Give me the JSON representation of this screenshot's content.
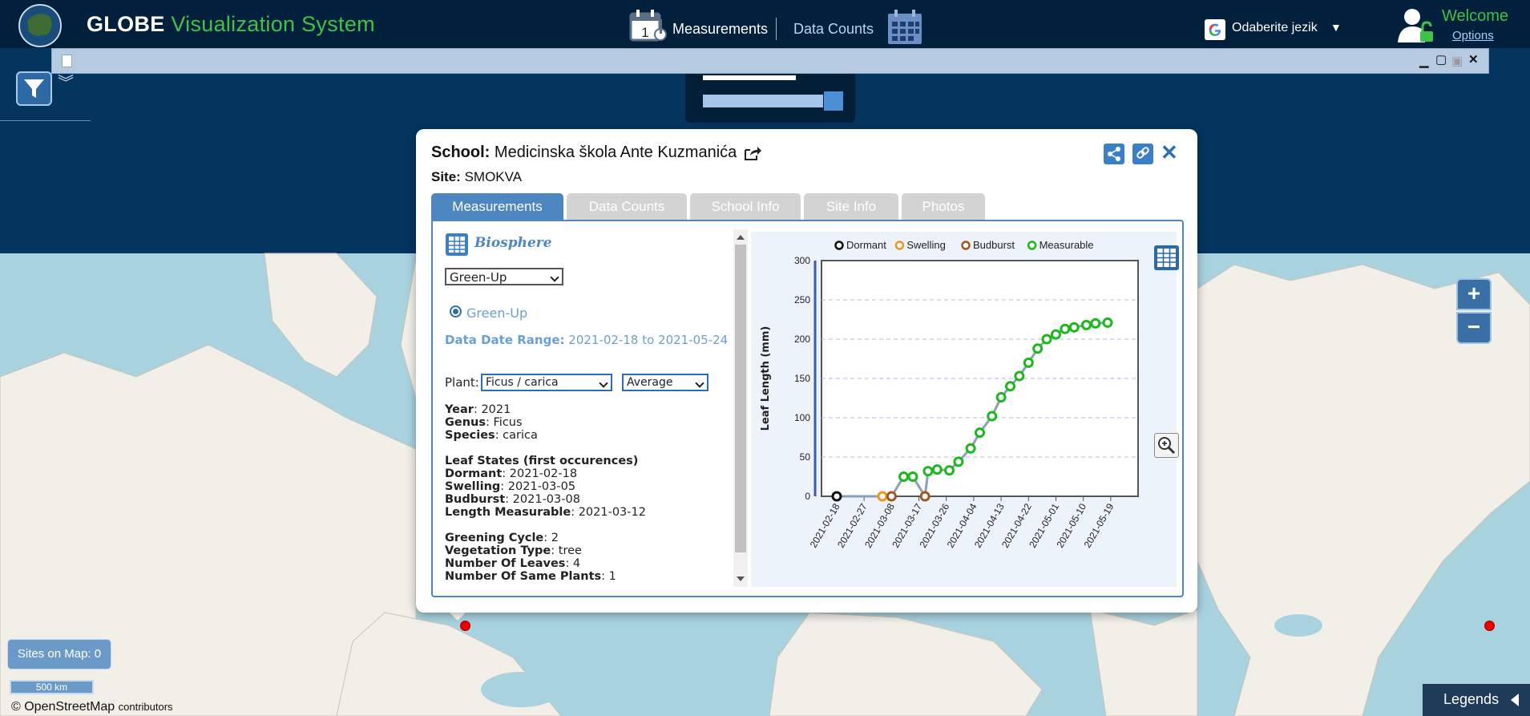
{
  "header": {
    "app_title_bold": "GLOBE",
    "app_title_rest": "Visualization System",
    "nav_measurements": "Measurements",
    "nav_data_counts": "Data Counts",
    "nav_calendar_day": "1",
    "language": "Odaberite jezik",
    "welcome": "Welcome",
    "options": "Options"
  },
  "map": {
    "sites_on_map": "Sites on Map: 0",
    "scale": "500 km",
    "attribution": "© OpenStreetMap",
    "attribution_suffix": "contributors",
    "legends": "Legends",
    "zoom_in": "+",
    "zoom_out": "−"
  },
  "popup": {
    "school_label": "School:",
    "school_name": "Medicinska škola Ante Kuzmanića",
    "site_label": "Site:",
    "site_name": "SMOKVA",
    "tabs": [
      {
        "label": "Measurements",
        "active": true
      },
      {
        "label": "Data Counts",
        "active": false
      },
      {
        "label": "School Info",
        "active": false
      },
      {
        "label": "Site Info",
        "active": false
      },
      {
        "label": "Photos",
        "active": false
      }
    ],
    "protocol_title": "Biosphere",
    "protocol_select": "Green-Up",
    "radio_option": "Green-Up",
    "date_range_label": "Data Date Range:",
    "date_range_value": "2021-02-18 to 2021-05-24",
    "plant_label": "Plant:",
    "plant_select": "Ficus / carica",
    "aggregate_select": "Average",
    "details": [
      {
        "key": "Year",
        "value": ": 2021"
      },
      {
        "key": "Genus",
        "value": ": Ficus"
      },
      {
        "key": "Species",
        "value": ": carica"
      }
    ],
    "leaf_states_title": "Leaf States (first occurences)",
    "leaf_states": [
      {
        "key": "Dormant",
        "value": ": 2021-02-18"
      },
      {
        "key": "Swelling",
        "value": ": 2021-03-05"
      },
      {
        "key": "Budburst",
        "value": ": 2021-03-08"
      },
      {
        "key": "Length Measurable",
        "value": ": 2021-03-12"
      }
    ],
    "other_info": [
      {
        "key": "Greening Cycle",
        "value": ": 2"
      },
      {
        "key": "Vegetation Type",
        "value": ": tree"
      },
      {
        "key": "Number Of Leaves",
        "value": ": 4"
      },
      {
        "key": "Number Of Same Plants",
        "value": ": 1"
      }
    ]
  },
  "colors": {
    "dormant": "#111111",
    "swelling": "#f0961e",
    "budburst": "#a0581e",
    "measurable": "#1db81d",
    "line": "#8aa0b8",
    "accent": "#4d86c1"
  },
  "chart_data": {
    "type": "line",
    "title": "",
    "xlabel": "",
    "ylabel": "Leaf Length (mm)",
    "ylim": [
      0,
      300
    ],
    "yticks": [
      0,
      50,
      100,
      150,
      200,
      250,
      300
    ],
    "xlim": [
      "2021-02-13",
      "2021-05-28"
    ],
    "xticks": [
      "2021-02-18",
      "2021-02-27",
      "2021-03-08",
      "2021-03-17",
      "2021-03-26",
      "2021-04-04",
      "2021-04-13",
      "2021-04-22",
      "2021-05-01",
      "2021-05-10",
      "2021-05-19"
    ],
    "legend_position": "top",
    "grid": "horizontal dashed",
    "series": [
      {
        "name": "Dormant",
        "points": [
          [
            "2021-02-18",
            0
          ]
        ]
      },
      {
        "name": "Swelling",
        "points": [
          [
            "2021-03-05",
            0
          ]
        ]
      },
      {
        "name": "Budburst",
        "points": [
          [
            "2021-03-08",
            0
          ],
          [
            "2021-03-19",
            0
          ]
        ]
      },
      {
        "name": "Measurable",
        "points": [
          [
            "2021-03-12",
            25
          ],
          [
            "2021-03-15",
            25
          ],
          [
            "2021-03-20",
            32
          ],
          [
            "2021-03-23",
            34
          ],
          [
            "2021-03-27",
            33
          ],
          [
            "2021-03-30",
            44
          ],
          [
            "2021-04-03",
            61
          ],
          [
            "2021-04-06",
            81
          ],
          [
            "2021-04-10",
            102
          ],
          [
            "2021-04-13",
            126
          ],
          [
            "2021-04-16",
            140
          ],
          [
            "2021-04-19",
            153
          ],
          [
            "2021-04-22",
            170
          ],
          [
            "2021-04-25",
            188
          ],
          [
            "2021-04-28",
            200
          ],
          [
            "2021-05-01",
            206
          ],
          [
            "2021-05-04",
            213
          ],
          [
            "2021-05-07",
            215
          ],
          [
            "2021-05-11",
            218
          ],
          [
            "2021-05-14",
            220
          ],
          [
            "2021-05-18",
            221
          ]
        ]
      }
    ]
  }
}
